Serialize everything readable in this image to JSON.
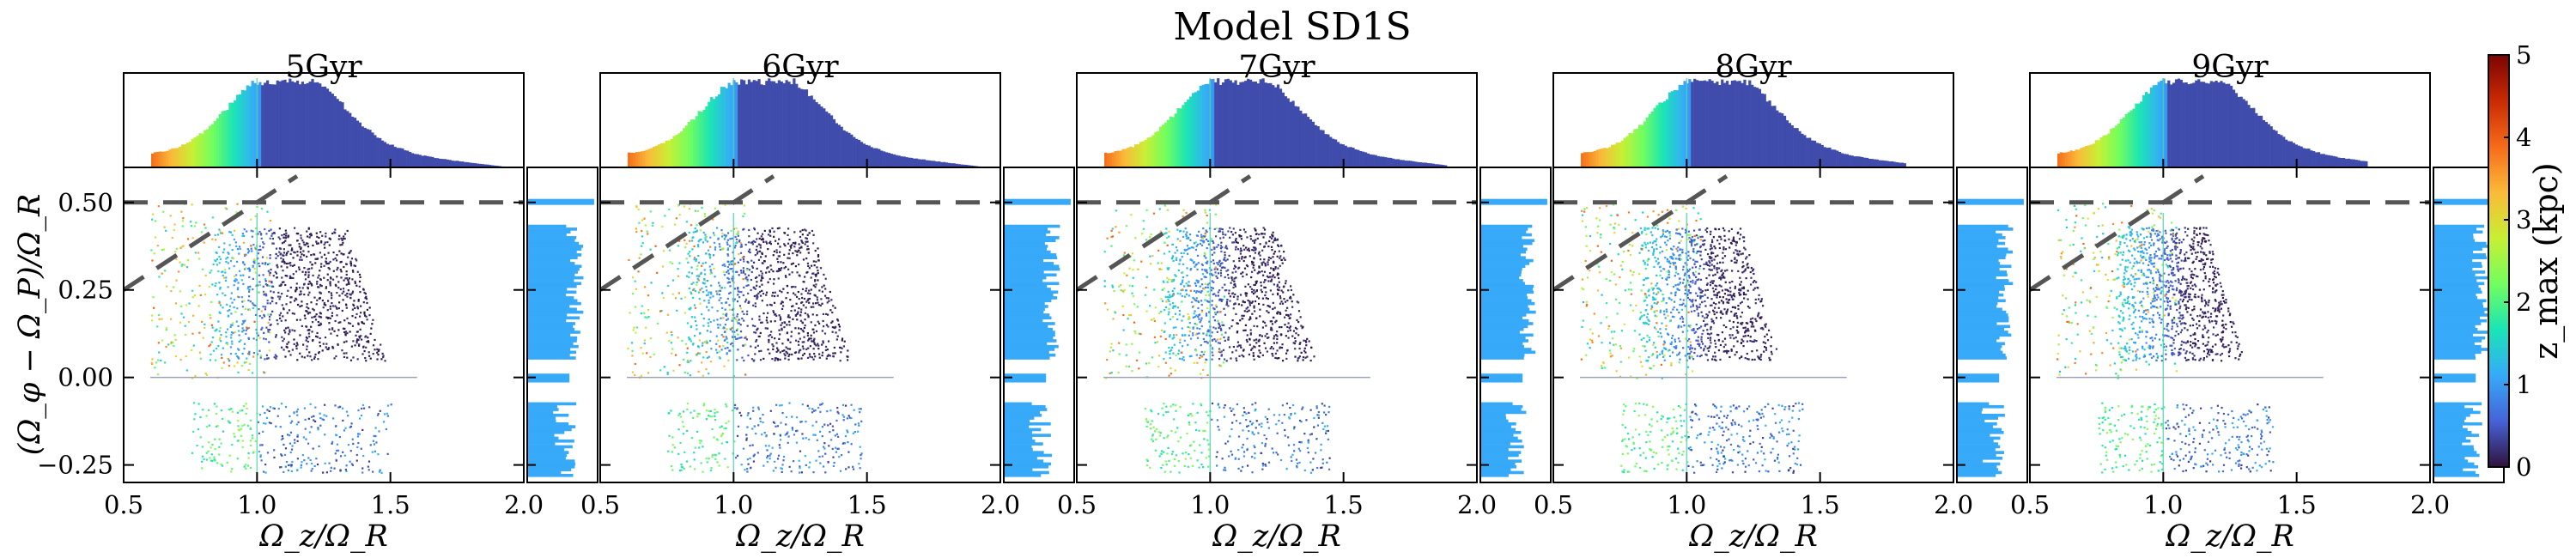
{
  "chart_data": {
    "type": "scatter",
    "title": "Model SD1S",
    "panels": [
      {
        "title": "5Gyr",
        "xlabel": "Ω_z/Ω_R"
      },
      {
        "title": "6Gyr",
        "xlabel": "Ω_z/Ω_R"
      },
      {
        "title": "7Gyr",
        "xlabel": "Ω_z/Ω_R"
      },
      {
        "title": "8Gyr",
        "xlabel": "Ω_z/Ω_R"
      },
      {
        "title": "9Gyr",
        "xlabel": "Ω_z/Ω_R"
      }
    ],
    "ylabel": "(Ω_φ − Ω_P)/Ω_R",
    "xlim": [
      0.5,
      2.0
    ],
    "ylim": [
      -0.3,
      0.6
    ],
    "xticks": [
      0.5,
      1.0,
      1.5,
      2.0
    ],
    "xtick_labels": [
      "0.5",
      "1.0",
      "1.5",
      "2.0"
    ],
    "yticks": [
      -0.25,
      0.0,
      0.25,
      0.5
    ],
    "ytick_labels": [
      "−0.25",
      "0.00",
      "0.25",
      "0.50"
    ],
    "resonance_lines": {
      "horizontal": [
        0.5
      ],
      "diagonal_slope": 0.5,
      "diagonal_point": [
        1.0,
        0.5
      ]
    },
    "colorbar": {
      "label": "z_max (kpc)",
      "range": [
        0,
        5
      ],
      "ticks": [
        0,
        1,
        2,
        3,
        4,
        5
      ],
      "tick_labels": [
        "0",
        "1",
        "2",
        "3",
        "4",
        "5"
      ],
      "colormap": [
        "#30123b",
        "#4662d7",
        "#36aaf9",
        "#1ae4b6",
        "#72fe5e",
        "#c8ef34",
        "#faba39",
        "#f66b19",
        "#ca2a04",
        "#7a0403"
      ]
    },
    "side_hist_xlim": [
      0,
      0.22
    ]
  }
}
